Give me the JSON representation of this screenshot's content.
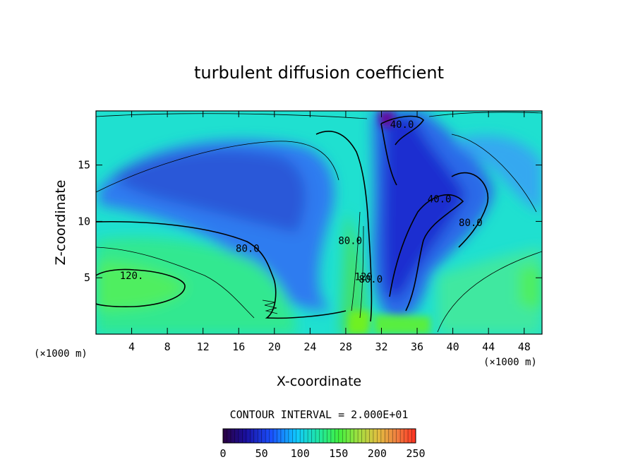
{
  "chart_data": {
    "type": "heatmap",
    "title": "turbulent diffusion coefficient",
    "xlabel": "X-coordinate",
    "ylabel": "Z-coordinate",
    "x_unit": "(×1000 m)",
    "y_unit": "(×1000 m)",
    "x_ticks": [
      4,
      8,
      12,
      16,
      20,
      24,
      28,
      32,
      36,
      40,
      44,
      48
    ],
    "y_ticks": [
      5,
      10,
      15
    ],
    "xlim": [
      0,
      50
    ],
    "ylim": [
      0,
      19.8
    ],
    "contour_interval_label": "CONTOUR INTERVAL = 2.000E+01",
    "colorbar_ticks": [
      0,
      50,
      100,
      150,
      200,
      250
    ],
    "colorbar_range": [
      0,
      250
    ],
    "contour_labels": [
      {
        "text": "120.",
        "x": 4.0,
        "y": 5.2
      },
      {
        "text": "80.0",
        "x": 17.0,
        "y": 7.6
      },
      {
        "text": "80.0",
        "x": 28.5,
        "y": 8.3
      },
      {
        "text": "120",
        "x": 30.0,
        "y": 5.1
      },
      {
        "text": "80.0",
        "x": 30.8,
        "y": 4.9
      },
      {
        "text": "40.0",
        "x": 34.3,
        "y": 18.6
      },
      {
        "text": "40.0",
        "x": 38.5,
        "y": 12.0
      },
      {
        "text": "80.0",
        "x": 42.0,
        "y": 9.9
      }
    ],
    "colors": {
      "background_field": "#1fe0d0",
      "low": "#2a2ec8",
      "high": "#3cf03c"
    }
  }
}
